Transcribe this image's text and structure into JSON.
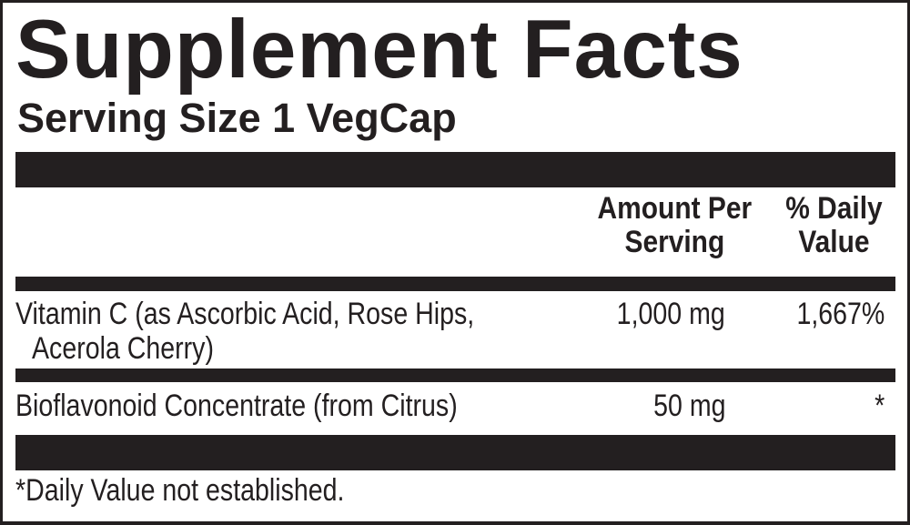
{
  "title": "Supplement Facts",
  "serving_size": "Serving Size 1 VegCap",
  "columns": {
    "amount_line1": "Amount Per",
    "amount_line2": "Serving",
    "dv_line1": "% Daily",
    "dv_line2": "Value"
  },
  "rows": [
    {
      "name_line1": "Vitamin C (as Ascorbic Acid, Rose Hips,",
      "name_line2": "Acerola Cherry)",
      "amount": "1,000 mg",
      "daily_value": "1,667%"
    },
    {
      "name_line1": "Bioflavonoid Concentrate (from Citrus)",
      "amount": "50 mg",
      "daily_value": "*"
    }
  ],
  "footnote": "*Daily Value not established.",
  "colors": {
    "ink": "#231f20",
    "background": "#ffffff"
  }
}
